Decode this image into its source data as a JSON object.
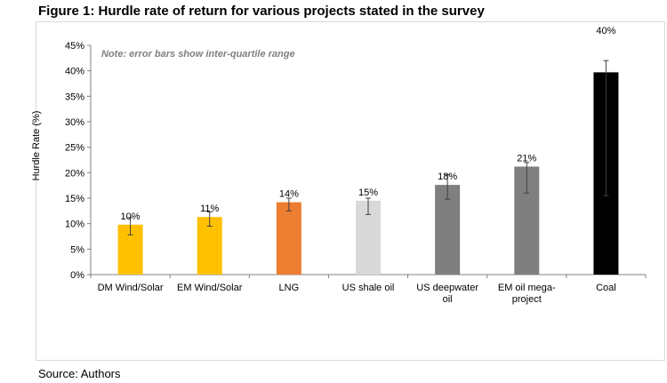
{
  "figure": {
    "title": "Figure 1: Hurdle rate of return for various projects stated in the survey",
    "source": "Source: Authors"
  },
  "chart_data": {
    "type": "bar",
    "title": "Figure 1: Hurdle rate of return for various projects stated in the survey",
    "ylabel": "Hurdle Rate (%)",
    "xlabel": "",
    "annotation": "Note: error bars show inter-quartile range",
    "ylim": [
      0,
      45
    ],
    "yticks": [
      0,
      5,
      10,
      15,
      20,
      25,
      30,
      35,
      40,
      45
    ],
    "ytick_labels": [
      "0%",
      "5%",
      "10%",
      "15%",
      "20%",
      "25%",
      "30%",
      "35%",
      "40%",
      "45%"
    ],
    "categories": [
      [
        "DM Wind/Solar"
      ],
      [
        "EM Wind/Solar"
      ],
      [
        "LNG"
      ],
      [
        "US shale oil"
      ],
      [
        "US deepwater",
        "oil"
      ],
      [
        "EM oil mega-",
        "project"
      ],
      [
        "Coal"
      ]
    ],
    "values": [
      9.8,
      11.3,
      14.2,
      14.5,
      17.6,
      21.2,
      39.7
    ],
    "data_labels": [
      "10%",
      "11%",
      "14%",
      "15%",
      "18%",
      "21%",
      "40%"
    ],
    "error_low": [
      7.8,
      9.5,
      12.5,
      11.8,
      14.8,
      16.0,
      15.5
    ],
    "error_high": [
      11.2,
      12.3,
      15.0,
      15.0,
      19.6,
      22.0,
      42.0
    ],
    "colors": [
      "#FFC000",
      "#FFC000",
      "#ED7D31",
      "#D9D9D9",
      "#7F7F7F",
      "#7F7F7F",
      "#000000"
    ],
    "grid": false
  }
}
